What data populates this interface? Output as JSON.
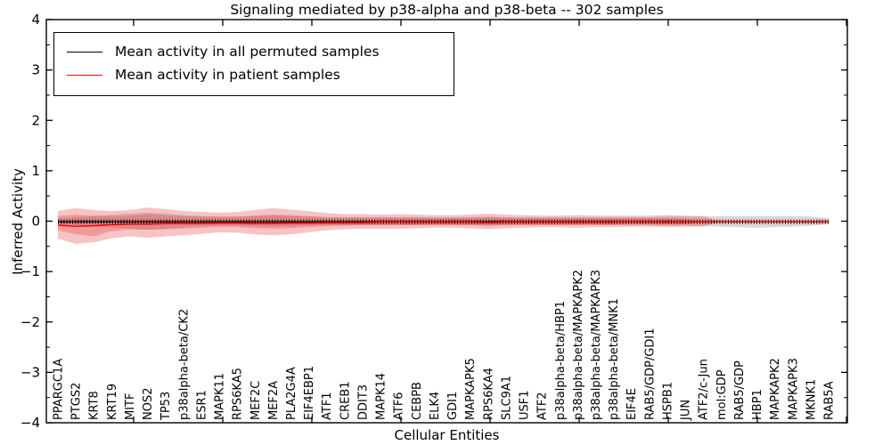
{
  "chart_data": {
    "type": "line",
    "title": "Signaling mediated by p38-alpha and p38-beta -- 302 samples",
    "xlabel": "Cellular Entities",
    "ylabel": "Inferred Activity",
    "ylim": [
      -4,
      4
    ],
    "y_major_ticks": [
      -4,
      -3,
      -2,
      -1,
      0,
      1,
      2,
      3,
      4
    ],
    "y_minor_step": 0.5,
    "grid": false,
    "legend_position": "upper left",
    "categories": [
      "PPARGC1A",
      "PTGS2",
      "KRT8",
      "KRT19",
      "MITF",
      "NOS2",
      "TP53",
      "p38alpha-beta/CK2",
      "ESR1",
      "MAPK11",
      "RPS6KA5",
      "MEF2C",
      "MEF2A",
      "PLA2G4A",
      "EIF4EBP1",
      "ATF1",
      "CREB1",
      "DDIT3",
      "MAPK14",
      "ATF6",
      "CEBPB",
      "ELK4",
      "GDI1",
      "MAPKAPK5",
      "RPS6KA4",
      "SLC9A1",
      "USF1",
      "ATF2",
      "p38alpha-beta/HBP1",
      "p38alpha-beta/MAPKAPK2",
      "p38alpha-beta/MAPKAPK3",
      "p38alpha-beta/MNK1",
      "EIF4E",
      "RAB5/GDP/GDI1",
      "HSPB1",
      "JUN",
      "ATF2/c-Jun",
      "mol:GDP",
      "RAB5/GDP",
      "HBP1",
      "MAPKAPK2",
      "MAPKAPK3",
      "MKNK1",
      "RAB5A"
    ],
    "series": [
      {
        "name": "Mean activity in all permuted samples",
        "color": "#000000",
        "values": [
          -0.01,
          -0.01,
          -0.01,
          -0.01,
          -0.01,
          -0.01,
          -0.01,
          -0.01,
          -0.01,
          -0.01,
          -0.01,
          -0.01,
          -0.01,
          -0.01,
          -0.01,
          -0.01,
          -0.01,
          -0.01,
          -0.01,
          -0.01,
          -0.01,
          -0.01,
          -0.01,
          -0.01,
          -0.01,
          -0.01,
          -0.01,
          -0.01,
          -0.01,
          -0.01,
          -0.01,
          -0.01,
          -0.01,
          -0.01,
          -0.01,
          -0.01,
          -0.01,
          -0.01,
          -0.01,
          -0.01,
          -0.01,
          -0.01,
          -0.01,
          -0.01
        ]
      },
      {
        "name": "Mean activity in patient samples",
        "color": "#ff0000",
        "values": [
          -0.08,
          -0.1,
          -0.09,
          -0.07,
          -0.06,
          -0.06,
          -0.05,
          -0.05,
          -0.05,
          -0.04,
          -0.04,
          -0.05,
          -0.05,
          -0.04,
          -0.04,
          -0.03,
          -0.03,
          -0.03,
          -0.02,
          -0.02,
          -0.02,
          -0.02,
          -0.02,
          -0.02,
          -0.03,
          -0.02,
          -0.02,
          -0.02,
          -0.02,
          -0.02,
          -0.02,
          -0.02,
          -0.01,
          -0.01,
          -0.02,
          -0.01,
          -0.01,
          -0.01,
          -0.01,
          -0.01,
          -0.01,
          -0.01,
          -0.01,
          -0.01
        ]
      }
    ],
    "bands": [
      {
        "name": "permuted-std-band",
        "color": "#aaaaaa",
        "opacity": 0.45,
        "upper": [
          0.06,
          0.08,
          0.1,
          0.13,
          0.15,
          0.17,
          0.15,
          0.12,
          0.1,
          0.09,
          0.09,
          0.1,
          0.11,
          0.1,
          0.09,
          0.08,
          0.08,
          0.08,
          0.08,
          0.08,
          0.08,
          0.08,
          0.08,
          0.08,
          0.09,
          0.08,
          0.08,
          0.08,
          0.08,
          0.08,
          0.08,
          0.08,
          0.08,
          0.08,
          0.09,
          0.09,
          0.09,
          0.1,
          0.1,
          0.1,
          0.1,
          0.1,
          0.09,
          0.06
        ],
        "lower": [
          -0.06,
          -0.08,
          -0.1,
          -0.13,
          -0.15,
          -0.17,
          -0.15,
          -0.12,
          -0.1,
          -0.09,
          -0.09,
          -0.1,
          -0.11,
          -0.1,
          -0.09,
          -0.08,
          -0.08,
          -0.08,
          -0.08,
          -0.08,
          -0.08,
          -0.08,
          -0.08,
          -0.08,
          -0.09,
          -0.08,
          -0.08,
          -0.08,
          -0.08,
          -0.08,
          -0.08,
          -0.08,
          -0.08,
          -0.08,
          -0.09,
          -0.09,
          -0.1,
          -0.11,
          -0.12,
          -0.13,
          -0.12,
          -0.11,
          -0.09,
          -0.06
        ]
      },
      {
        "name": "patient-std-outer-band",
        "color": "#e03c3c",
        "opacity": 0.3,
        "upper": [
          0.2,
          0.26,
          0.22,
          0.2,
          0.22,
          0.27,
          0.24,
          0.2,
          0.18,
          0.17,
          0.18,
          0.22,
          0.26,
          0.23,
          0.2,
          0.16,
          0.14,
          0.14,
          0.13,
          0.14,
          0.13,
          0.12,
          0.12,
          0.13,
          0.15,
          0.13,
          0.12,
          0.11,
          0.11,
          0.12,
          0.11,
          0.11,
          0.11,
          0.11,
          0.12,
          0.11,
          0.1,
          -0.01,
          -0.01,
          -0.01,
          -0.01,
          -0.01,
          -0.01,
          -0.01
        ],
        "lower": [
          -0.35,
          -0.45,
          -0.42,
          -0.34,
          -0.3,
          -0.33,
          -0.3,
          -0.28,
          -0.25,
          -0.22,
          -0.23,
          -0.26,
          -0.28,
          -0.26,
          -0.22,
          -0.18,
          -0.16,
          -0.15,
          -0.15,
          -0.15,
          -0.14,
          -0.13,
          -0.13,
          -0.14,
          -0.16,
          -0.14,
          -0.13,
          -0.12,
          -0.12,
          -0.13,
          -0.12,
          -0.12,
          -0.11,
          -0.11,
          -0.12,
          -0.11,
          -0.1,
          -0.01,
          -0.01,
          -0.01,
          -0.01,
          -0.01,
          -0.01,
          -0.01
        ]
      },
      {
        "name": "patient-std-inner-band",
        "color": "#e03c3c",
        "opacity": 0.3,
        "upper": [
          0.1,
          0.13,
          0.11,
          0.1,
          0.11,
          0.14,
          0.12,
          0.1,
          0.09,
          0.09,
          0.09,
          0.11,
          0.13,
          0.12,
          0.1,
          0.08,
          0.07,
          0.07,
          0.07,
          0.07,
          0.07,
          0.06,
          0.06,
          0.07,
          0.08,
          0.07,
          0.06,
          0.06,
          0.06,
          0.06,
          0.06,
          0.06,
          0.06,
          0.06,
          0.06,
          0.05,
          -0.01,
          -0.01,
          -0.01,
          -0.01,
          -0.01,
          -0.01,
          -0.01,
          -0.01
        ],
        "lower": [
          -0.18,
          -0.26,
          -0.3,
          -0.2,
          -0.16,
          -0.17,
          -0.16,
          -0.15,
          -0.13,
          -0.11,
          -0.12,
          -0.14,
          -0.15,
          -0.14,
          -0.12,
          -0.1,
          -0.09,
          -0.08,
          -0.08,
          -0.08,
          -0.08,
          -0.07,
          -0.07,
          -0.08,
          -0.09,
          -0.08,
          -0.07,
          -0.07,
          -0.07,
          -0.07,
          -0.07,
          -0.07,
          -0.06,
          -0.06,
          -0.07,
          -0.06,
          -0.01,
          -0.01,
          -0.01,
          -0.01,
          -0.01,
          -0.01,
          -0.01,
          -0.01
        ]
      }
    ]
  }
}
